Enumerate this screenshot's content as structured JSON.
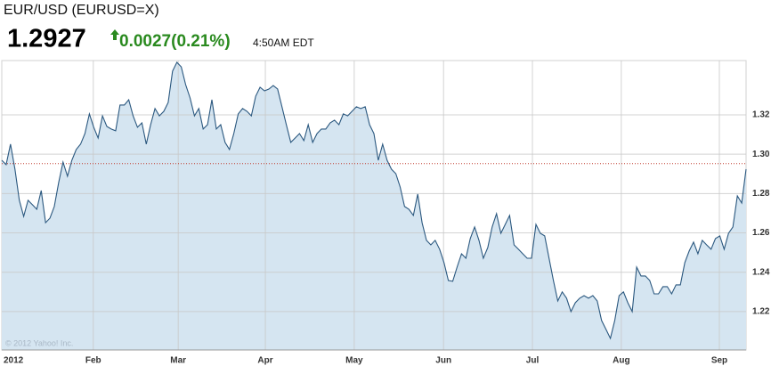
{
  "header": {
    "title": "EUR/USD (EURUSD=X)",
    "price": "1.2927",
    "change": "0.0027(0.21%)",
    "time": "4:50AM EDT",
    "change_color": "#2a8a1f"
  },
  "chart_data": {
    "type": "area",
    "watermark": "© 2012 Yahoo! Inc.",
    "color": "#2b587f",
    "fill_color": "#d5e5f1",
    "grid": true,
    "reference_line": 1.2952,
    "reference_color": "#c0392b",
    "ylim": [
      1.2005,
      1.3476
    ],
    "yticks": [
      1.22,
      1.24,
      1.26,
      1.28,
      1.3,
      1.32
    ],
    "ytick_labels": [
      "1.22",
      "1.24",
      "1.26",
      "1.28",
      "1.30",
      "1.32"
    ],
    "xlim": [
      0,
      170
    ],
    "xticks": [
      {
        "value": 0,
        "label": "2012"
      },
      {
        "value": 20.9,
        "label": "Feb"
      },
      {
        "value": 40.3,
        "label": "Mar"
      },
      {
        "value": 60.2,
        "label": "Apr"
      },
      {
        "value": 80.5,
        "label": "May"
      },
      {
        "value": 100.9,
        "label": "Jun"
      },
      {
        "value": 121.2,
        "label": "Jul"
      },
      {
        "value": 141.5,
        "label": "Aug"
      },
      {
        "value": 163.9,
        "label": "Sep"
      }
    ],
    "values": [
      1.2969,
      1.2947,
      1.3051,
      1.2924,
      1.2766,
      1.2684,
      1.2766,
      1.2743,
      1.272,
      1.2815,
      1.2652,
      1.2675,
      1.2734,
      1.2856,
      1.296,
      1.2888,
      1.2969,
      1.3024,
      1.3051,
      1.3105,
      1.3205,
      1.3137,
      1.3082,
      1.3195,
      1.3141,
      1.3128,
      1.3119,
      1.325,
      1.325,
      1.3277,
      1.3195,
      1.3137,
      1.3159,
      1.3051,
      1.315,
      1.3232,
      1.3195,
      1.3218,
      1.3263,
      1.3422,
      1.3467,
      1.3444,
      1.3354,
      1.3286,
      1.3195,
      1.3232,
      1.3128,
      1.315,
      1.3277,
      1.3128,
      1.315,
      1.306,
      1.3024,
      1.3105,
      1.3205,
      1.3232,
      1.3218,
      1.3195,
      1.3295,
      1.334,
      1.3322,
      1.3331,
      1.3349,
      1.3331,
      1.3241,
      1.315,
      1.306,
      1.3082,
      1.3105,
      1.3069,
      1.315,
      1.306,
      1.3105,
      1.3128,
      1.3128,
      1.3159,
      1.3173,
      1.315,
      1.3205,
      1.3195,
      1.3218,
      1.3241,
      1.3232,
      1.3241,
      1.315,
      1.3105,
      1.2969,
      1.3051,
      1.2969,
      1.2924,
      1.2901,
      1.2833,
      1.2734,
      1.272,
      1.2689,
      1.2797,
      1.2652,
      1.2562,
      1.2539,
      1.2562,
      1.2517,
      1.2449,
      1.2358,
      1.2354,
      1.2426,
      1.2494,
      1.2471,
      1.2571,
      1.263,
      1.2562,
      1.2471,
      1.2526,
      1.263,
      1.2698,
      1.2598,
      1.2643,
      1.2689,
      1.2539,
      1.2517,
      1.2494,
      1.2471,
      1.2471,
      1.2643,
      1.2598,
      1.2585,
      1.2471,
      1.2358,
      1.2254,
      1.23,
      1.2268,
      1.22,
      1.2245,
      1.2268,
      1.2281,
      1.2268,
      1.2281,
      1.2254,
      1.2155,
      1.211,
      1.2064,
      1.2155,
      1.2281,
      1.23,
      1.2245,
      1.22,
      1.2426,
      1.2381,
      1.2381,
      1.2358,
      1.229,
      1.229,
      1.2327,
      1.2327,
      1.229,
      1.2336,
      1.2336,
      1.2449,
      1.2508,
      1.2553,
      1.2494,
      1.2562,
      1.2539,
      1.2517,
      1.2571,
      1.2585,
      1.2517,
      1.2598,
      1.263,
      1.2788,
      1.2752,
      1.2924
    ]
  }
}
